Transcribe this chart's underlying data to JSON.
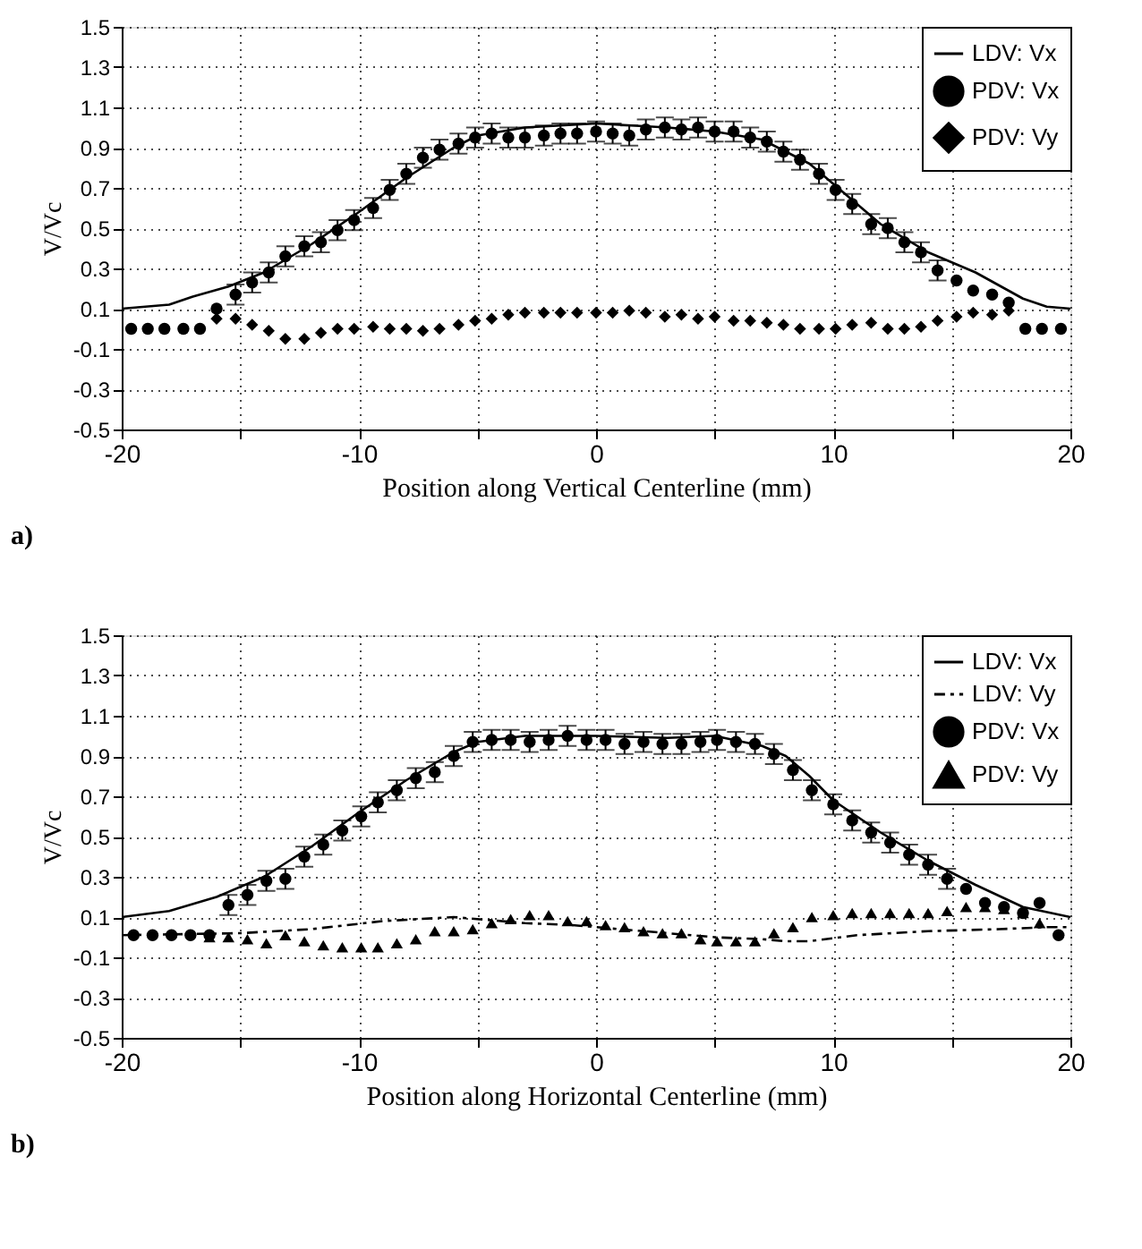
{
  "chart_data": [
    {
      "type": "scatter",
      "xlabel": "Position along Vertical Centerline (mm)",
      "ylabel": "V/Vc",
      "annotations": [
        "a)"
      ],
      "xlim": [
        -20,
        20
      ],
      "ylim": [
        -0.5,
        1.5
      ],
      "xticks": [
        -20,
        {
          "value": -15,
          "label": null
        },
        -10,
        {
          "value": -5,
          "label": null
        },
        0,
        {
          "value": 5,
          "label": null
        },
        10,
        {
          "value": 15,
          "label": null
        },
        20
      ],
      "yticks": [
        -0.5,
        -0.3,
        -0.1,
        0.1,
        0.3,
        0.5,
        0.7,
        0.9,
        1.1,
        1.3,
        1.5
      ],
      "grid": true,
      "legend": "top right",
      "series": [
        {
          "name": "LDV: Vx",
          "type": "line",
          "line_style": "solid",
          "color": "#000000",
          "x": [
            -20,
            -18,
            -17,
            -15.5,
            -14,
            -12,
            -10,
            -8,
            -6,
            -5,
            -3,
            0,
            3,
            5,
            7,
            9,
            10,
            12,
            14,
            16,
            18,
            19,
            20
          ],
          "values": [
            0.1,
            0.12,
            0.16,
            0.21,
            0.28,
            0.42,
            0.58,
            0.75,
            0.9,
            0.96,
            1.0,
            1.02,
            1.0,
            0.98,
            0.94,
            0.82,
            0.72,
            0.52,
            0.38,
            0.28,
            0.15,
            0.11,
            0.1
          ]
        },
        {
          "name": "PDV: Vx",
          "marker": "circle",
          "color": "#000000",
          "x": [
            -19.6,
            -18.9,
            -18.2,
            -17.4,
            -16.7,
            -16.0,
            -15.2,
            -14.5,
            -13.8,
            -13.1,
            -12.3,
            -11.6,
            -10.9,
            -10.2,
            -9.4,
            -8.7,
            -8.0,
            -7.3,
            -6.6,
            -5.8,
            -5.1,
            -4.4,
            -3.7,
            -3.0,
            -2.2,
            -1.5,
            -0.8,
            0.0,
            0.7,
            1.4,
            2.1,
            2.9,
            3.6,
            4.3,
            5.0,
            5.8,
            6.5,
            7.2,
            7.9,
            8.6,
            9.4,
            10.1,
            10.8,
            11.6,
            12.3,
            13.0,
            13.7,
            14.4,
            15.2,
            15.9,
            16.7,
            17.4,
            18.1,
            18.8,
            19.6
          ],
          "values": [
            0.0,
            0.0,
            0.0,
            0.0,
            0.0,
            0.1,
            0.17,
            0.23,
            0.28,
            0.36,
            0.41,
            0.43,
            0.49,
            0.54,
            0.6,
            0.69,
            0.77,
            0.85,
            0.89,
            0.92,
            0.95,
            0.97,
            0.95,
            0.95,
            0.96,
            0.97,
            0.97,
            0.98,
            0.97,
            0.96,
            0.99,
            1.0,
            0.99,
            1.0,
            0.98,
            0.98,
            0.95,
            0.93,
            0.88,
            0.84,
            0.77,
            0.69,
            0.62,
            0.52,
            0.5,
            0.43,
            0.38,
            0.29,
            0.24,
            0.19,
            0.17,
            0.13,
            0.0,
            0.0,
            0.0
          ],
          "errors": [
            null,
            null,
            null,
            null,
            null,
            null,
            0.05,
            0.05,
            0.05,
            0.05,
            0.05,
            0.05,
            0.05,
            0.05,
            0.05,
            0.05,
            0.05,
            0.05,
            0.05,
            0.05,
            0.05,
            0.05,
            0.05,
            0.05,
            0.05,
            0.05,
            0.05,
            0.05,
            0.05,
            0.05,
            0.05,
            0.05,
            0.05,
            0.05,
            0.05,
            0.05,
            0.05,
            0.05,
            0.05,
            0.05,
            0.05,
            0.05,
            0.05,
            0.05,
            0.05,
            0.05,
            0.05,
            0.05,
            null,
            null,
            null,
            null,
            null,
            null,
            null
          ]
        },
        {
          "name": "PDV: Vy",
          "marker": "diamond",
          "color": "#000000",
          "x": [
            -16.0,
            -15.2,
            -14.5,
            -13.8,
            -13.1,
            -12.3,
            -11.6,
            -10.9,
            -10.2,
            -9.4,
            -8.7,
            -8.0,
            -7.3,
            -6.6,
            -5.8,
            -5.1,
            -4.4,
            -3.7,
            -3.0,
            -2.2,
            -1.5,
            -0.8,
            0.0,
            0.7,
            1.4,
            2.1,
            2.9,
            3.6,
            4.3,
            5.0,
            5.8,
            6.5,
            7.2,
            7.9,
            8.6,
            9.4,
            10.1,
            10.8,
            11.6,
            12.3,
            13.0,
            13.7,
            14.4,
            15.2,
            15.9,
            16.7,
            17.4
          ],
          "values": [
            0.05,
            0.05,
            0.02,
            -0.01,
            -0.05,
            -0.05,
            -0.02,
            0.0,
            0.0,
            0.01,
            0.0,
            0.0,
            -0.01,
            0.0,
            0.02,
            0.04,
            0.05,
            0.07,
            0.08,
            0.08,
            0.08,
            0.08,
            0.08,
            0.08,
            0.09,
            0.08,
            0.06,
            0.07,
            0.05,
            0.06,
            0.04,
            0.04,
            0.03,
            0.02,
            0.0,
            0.0,
            0.0,
            0.02,
            0.03,
            0.0,
            0.0,
            0.01,
            0.04,
            0.06,
            0.08,
            0.07,
            0.09
          ]
        }
      ]
    },
    {
      "type": "scatter",
      "xlabel": "Position along Horizontal Centerline (mm)",
      "ylabel": "V/Vc",
      "annotations": [
        "b)"
      ],
      "xlim": [
        -20,
        20
      ],
      "ylim": [
        -0.5,
        1.5
      ],
      "xticks": [
        -20,
        {
          "value": -15,
          "label": null
        },
        -10,
        {
          "value": -5,
          "label": null
        },
        0,
        {
          "value": 5,
          "label": null
        },
        10,
        {
          "value": 15,
          "label": null
        },
        20
      ],
      "yticks": [
        -0.5,
        -0.3,
        -0.1,
        0.1,
        0.3,
        0.5,
        0.7,
        0.9,
        1.1,
        1.3,
        1.5
      ],
      "grid": true,
      "legend": "top right",
      "series": [
        {
          "name": "LDV: Vx",
          "type": "line",
          "line_style": "solid",
          "color": "#000000",
          "x": [
            -20,
            -18,
            -16,
            -14,
            -12,
            -10,
            -8,
            -6,
            -5,
            -3,
            0,
            3,
            5,
            7,
            8,
            9,
            10,
            12,
            14,
            16,
            18,
            20
          ],
          "values": [
            0.1,
            0.13,
            0.2,
            0.3,
            0.45,
            0.62,
            0.78,
            0.92,
            0.97,
            1.0,
            1.0,
            0.99,
            1.0,
            0.95,
            0.9,
            0.8,
            0.68,
            0.52,
            0.38,
            0.26,
            0.15,
            0.1
          ]
        },
        {
          "name": "LDV: Vy",
          "type": "line",
          "line_style": "dashed",
          "color": "#000000",
          "x": [
            -20,
            -15,
            -12,
            -9,
            -6,
            -3,
            -1,
            1,
            3,
            5,
            7,
            8,
            9,
            11,
            14,
            17,
            19,
            20
          ],
          "values": [
            0.01,
            0.02,
            0.04,
            0.08,
            0.1,
            0.07,
            0.06,
            0.04,
            0.02,
            0.0,
            -0.01,
            -0.02,
            -0.02,
            0.01,
            0.03,
            0.04,
            0.05,
            0.05
          ]
        },
        {
          "name": "PDV: Vx",
          "marker": "circle",
          "color": "#000000",
          "x": [
            -19.5,
            -18.7,
            -17.9,
            -17.1,
            -16.3,
            -15.5,
            -14.7,
            -13.9,
            -13.1,
            -12.3,
            -11.5,
            -10.7,
            -9.9,
            -9.2,
            -8.4,
            -7.6,
            -6.8,
            -6.0,
            -5.2,
            -4.4,
            -3.6,
            -2.8,
            -2.0,
            -1.2,
            -0.4,
            0.4,
            1.2,
            2.0,
            2.8,
            3.6,
            4.4,
            5.1,
            5.9,
            6.7,
            7.5,
            8.3,
            9.1,
            10.0,
            10.8,
            11.6,
            12.4,
            13.2,
            14.0,
            14.8,
            15.6,
            16.4,
            17.2,
            18.0,
            18.7,
            19.5
          ],
          "values": [
            0.01,
            0.01,
            0.01,
            0.01,
            0.01,
            0.16,
            0.21,
            0.28,
            0.29,
            0.4,
            0.46,
            0.53,
            0.6,
            0.67,
            0.73,
            0.79,
            0.82,
            0.9,
            0.97,
            0.98,
            0.98,
            0.97,
            0.98,
            1.0,
            0.98,
            0.98,
            0.96,
            0.97,
            0.96,
            0.96,
            0.97,
            0.98,
            0.97,
            0.96,
            0.91,
            0.83,
            0.73,
            0.66,
            0.58,
            0.52,
            0.47,
            0.41,
            0.36,
            0.29,
            0.24,
            0.17,
            0.15,
            0.12,
            0.17,
            0.01
          ],
          "errors": [
            null,
            null,
            null,
            null,
            null,
            0.05,
            0.05,
            0.05,
            0.05,
            0.05,
            0.05,
            0.05,
            0.05,
            0.05,
            0.05,
            0.05,
            0.05,
            0.05,
            0.05,
            0.05,
            0.05,
            0.05,
            0.05,
            0.05,
            0.05,
            0.05,
            0.05,
            0.05,
            0.05,
            0.05,
            0.05,
            0.05,
            0.05,
            0.05,
            0.05,
            0.05,
            0.05,
            0.05,
            0.05,
            0.05,
            0.05,
            0.05,
            0.05,
            0.05,
            null,
            null,
            null,
            null,
            null,
            null
          ]
        },
        {
          "name": "PDV: Vy",
          "marker": "triangle",
          "color": "#000000",
          "x": [
            -16.3,
            -15.5,
            -14.7,
            -13.9,
            -13.1,
            -12.3,
            -11.5,
            -10.7,
            -9.9,
            -9.2,
            -8.4,
            -7.6,
            -6.8,
            -6.0,
            -5.2,
            -4.4,
            -3.6,
            -2.8,
            -2.0,
            -1.2,
            -0.4,
            0.4,
            1.2,
            2.0,
            2.8,
            3.6,
            4.4,
            5.1,
            5.9,
            6.7,
            7.5,
            8.3,
            9.1,
            10.0,
            10.8,
            11.6,
            12.4,
            13.2,
            14.0,
            14.8,
            15.6,
            16.4,
            17.2,
            18.0,
            18.7
          ],
          "values": [
            0.0,
            0.0,
            -0.01,
            -0.03,
            0.01,
            -0.02,
            -0.04,
            -0.05,
            -0.05,
            -0.05,
            -0.03,
            -0.01,
            0.03,
            0.03,
            0.04,
            0.07,
            0.09,
            0.11,
            0.11,
            0.08,
            0.08,
            0.06,
            0.05,
            0.03,
            0.02,
            0.02,
            -0.01,
            -0.02,
            -0.02,
            -0.02,
            0.02,
            0.05,
            0.1,
            0.11,
            0.12,
            0.12,
            0.12,
            0.12,
            0.12,
            0.13,
            0.15,
            0.15,
            0.14,
            0.12,
            0.07
          ]
        }
      ]
    }
  ]
}
